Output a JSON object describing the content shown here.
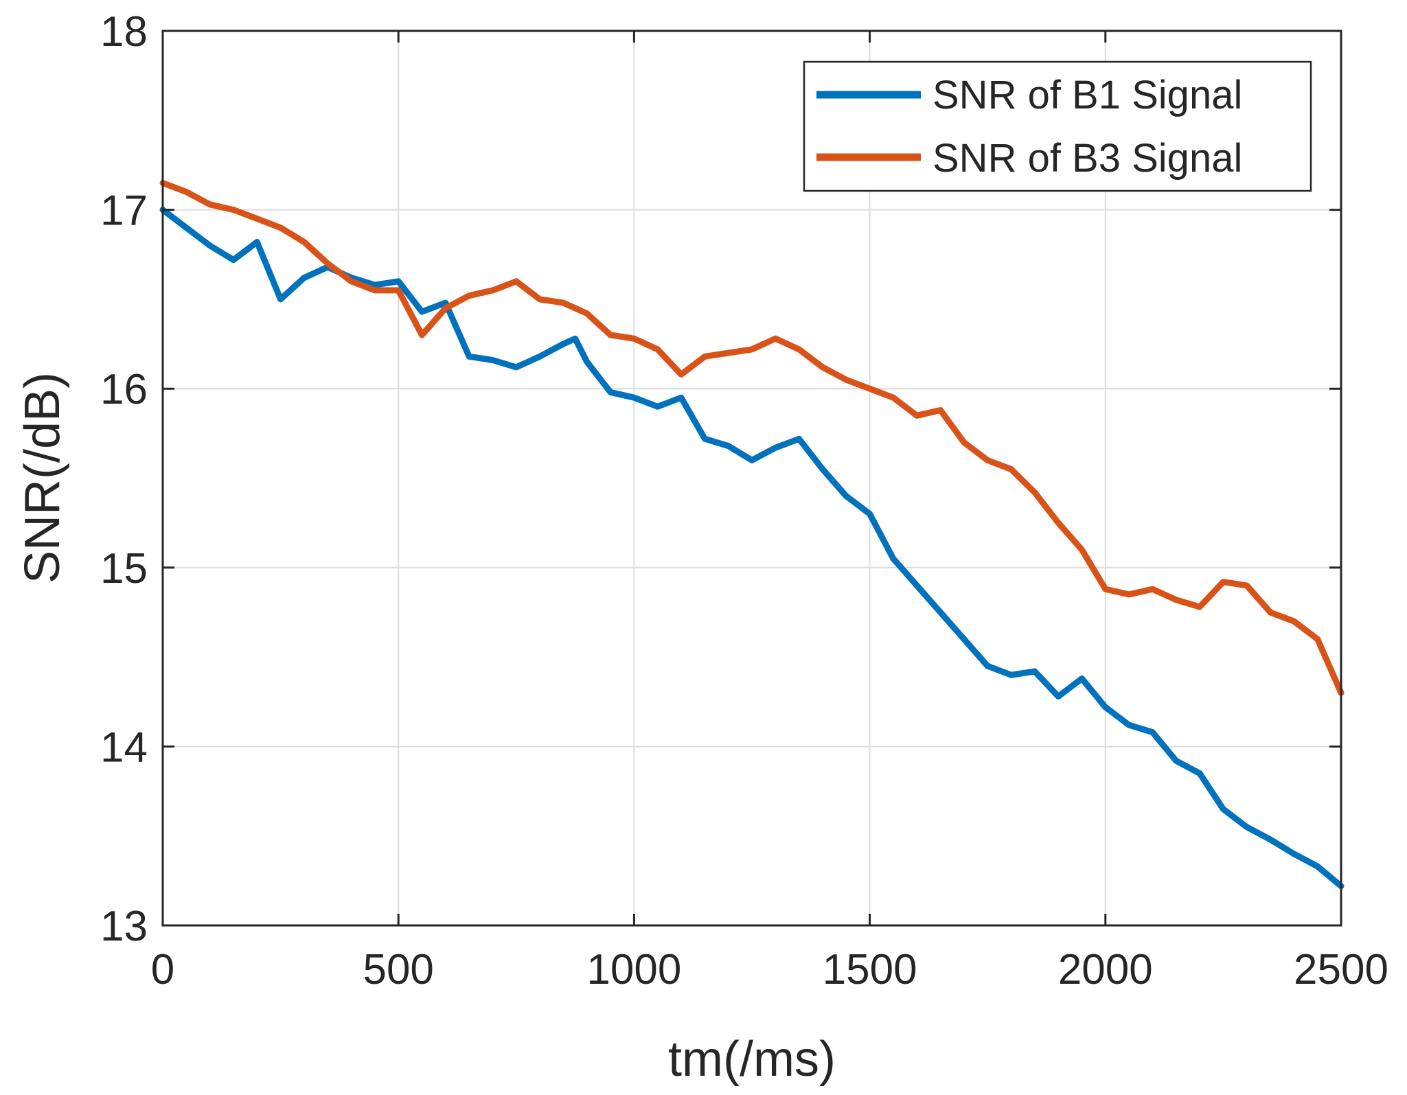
{
  "chart_data": {
    "type": "line",
    "title": "",
    "xlabel": "tm(/ms)",
    "ylabel": "SNR(/dB)",
    "xlim": [
      0,
      2500
    ],
    "ylim": [
      13,
      18
    ],
    "xticks": [
      0,
      500,
      1000,
      1500,
      2000,
      2500
    ],
    "yticks": [
      13,
      14,
      15,
      16,
      17,
      18
    ],
    "xtick_labels": [
      "0",
      "500",
      "1000",
      "1500",
      "2000",
      "2500"
    ],
    "ytick_labels": [
      "13",
      "14",
      "15",
      "16",
      "17",
      "18"
    ],
    "grid": true,
    "legend_position": "top-right",
    "series": [
      {
        "name": "SNR of B1 Signal",
        "color": "#0072BD",
        "x": [
          0,
          50,
          100,
          150,
          200,
          250,
          300,
          350,
          400,
          450,
          500,
          550,
          600,
          650,
          700,
          750,
          800,
          850,
          875,
          900,
          950,
          1000,
          1050,
          1100,
          1150,
          1200,
          1250,
          1300,
          1350,
          1400,
          1450,
          1500,
          1550,
          1600,
          1650,
          1700,
          1750,
          1800,
          1850,
          1900,
          1950,
          2000,
          2050,
          2100,
          2150,
          2200,
          2250,
          2300,
          2350,
          2400,
          2450,
          2500
        ],
        "y": [
          17.0,
          16.9,
          16.8,
          16.72,
          16.82,
          16.5,
          16.62,
          16.68,
          16.62,
          16.58,
          16.6,
          16.43,
          16.48,
          16.18,
          16.16,
          16.12,
          16.18,
          16.25,
          16.28,
          16.15,
          15.98,
          15.95,
          15.9,
          15.95,
          15.72,
          15.68,
          15.6,
          15.67,
          15.72,
          15.55,
          15.4,
          15.3,
          15.05,
          14.9,
          14.75,
          14.6,
          14.45,
          14.4,
          14.42,
          14.28,
          14.38,
          14.22,
          14.12,
          14.08,
          13.92,
          13.85,
          13.65,
          13.55,
          13.48,
          13.4,
          13.33,
          13.22
        ]
      },
      {
        "name": "SNR of B3 Signal",
        "color": "#D95319",
        "x": [
          0,
          50,
          100,
          150,
          200,
          250,
          300,
          350,
          400,
          450,
          500,
          550,
          600,
          650,
          700,
          750,
          800,
          850,
          900,
          950,
          1000,
          1050,
          1100,
          1150,
          1200,
          1250,
          1300,
          1350,
          1400,
          1450,
          1500,
          1550,
          1600,
          1650,
          1700,
          1750,
          1800,
          1850,
          1900,
          1950,
          2000,
          2050,
          2100,
          2150,
          2200,
          2250,
          2300,
          2350,
          2400,
          2450,
          2500
        ],
        "y": [
          17.15,
          17.1,
          17.03,
          17.0,
          16.95,
          16.9,
          16.82,
          16.7,
          16.6,
          16.55,
          16.55,
          16.3,
          16.45,
          16.52,
          16.55,
          16.6,
          16.5,
          16.48,
          16.42,
          16.3,
          16.28,
          16.22,
          16.08,
          16.18,
          16.2,
          16.22,
          16.28,
          16.22,
          16.12,
          16.05,
          16.0,
          15.95,
          15.85,
          15.88,
          15.7,
          15.6,
          15.55,
          15.42,
          15.25,
          15.1,
          14.88,
          14.85,
          14.88,
          14.82,
          14.78,
          14.92,
          14.9,
          14.75,
          14.7,
          14.6,
          14.3
        ]
      }
    ]
  }
}
